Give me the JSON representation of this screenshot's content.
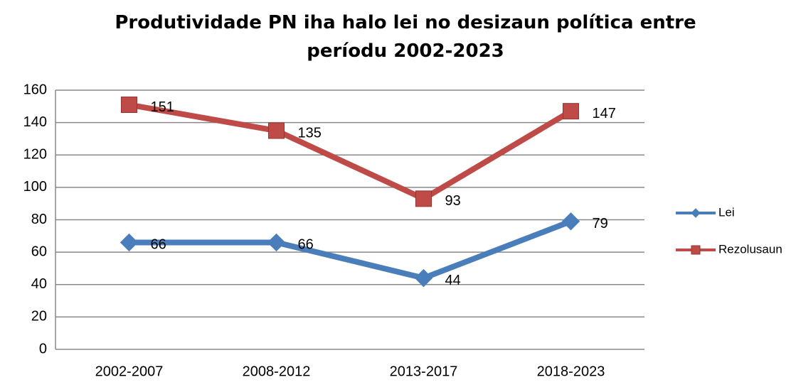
{
  "chart_data": {
    "type": "line",
    "title": "Produtividade PN iha halo lei no desizaun política entre períodu 2002-2023",
    "categories": [
      "2002-2007",
      "2008-2012",
      "2013-2017",
      "2018-2023"
    ],
    "series": [
      {
        "name": "Lei",
        "color": "#4a7ebb",
        "marker": "diamond",
        "values": [
          66,
          66,
          44,
          79
        ]
      },
      {
        "name": "Rezolusaun",
        "color": "#be4b48",
        "marker": "square",
        "values": [
          151,
          135,
          93,
          147
        ]
      }
    ],
    "ylim": [
      0,
      160
    ],
    "yticks": [
      0,
      20,
      40,
      60,
      80,
      100,
      120,
      140,
      160
    ],
    "grid": true,
    "legend": "right"
  }
}
